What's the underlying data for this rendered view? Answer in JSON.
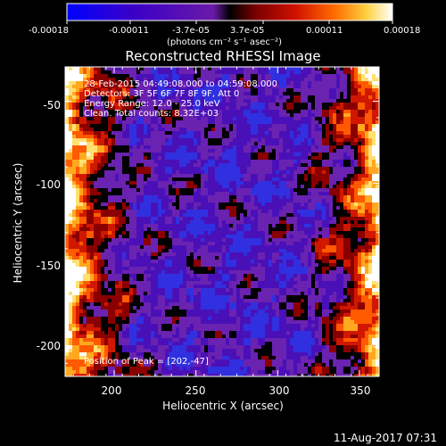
{
  "colorbar": {
    "tick_labels": [
      "-0.00018",
      "-0.00011",
      "-3.7e-05",
      "3.7e-05",
      "0.00011",
      "0.00018"
    ],
    "tick_values": [
      -0.00018,
      -0.00011,
      -3.7e-05,
      3.7e-05,
      0.00011,
      0.00018
    ],
    "unit_label": "(photons cm⁻² s⁻¹ asec⁻²)",
    "range": [
      -0.00018,
      0.00018
    ]
  },
  "chart_data": {
    "type": "heatmap",
    "title": "Reconstructed RHESSI Image",
    "xlabel": "Heliocentric X (arcsec)",
    "ylabel": "Heliocentric Y (arcsec)",
    "xlim": [
      170,
      362
    ],
    "ylim": [
      -218,
      -29
    ],
    "x_ticks": [
      200,
      250,
      300,
      350
    ],
    "y_ticks": [
      -50,
      -100,
      -150,
      -200
    ],
    "x_tick_labels": [
      "200",
      "250",
      "300",
      "350"
    ],
    "y_tick_labels": [
      "-50",
      "-100",
      "-150",
      "-200"
    ],
    "annotations": [
      "28-Feb-2015 04:49:08.000 to 04:59:08.000",
      "Detectors: 3F 5F 6F 7F 8F 9F, Att 0",
      "Energy Range: 12.0 - 25.0 keV",
      "Clean.  Total counts: 8.32E+03"
    ],
    "peak_label": "Position of Peak = [202,-47]",
    "peak": [
      202,
      -47
    ],
    "grid": false
  },
  "footer": {
    "timestamp": "11-Aug-2017 07:31"
  }
}
